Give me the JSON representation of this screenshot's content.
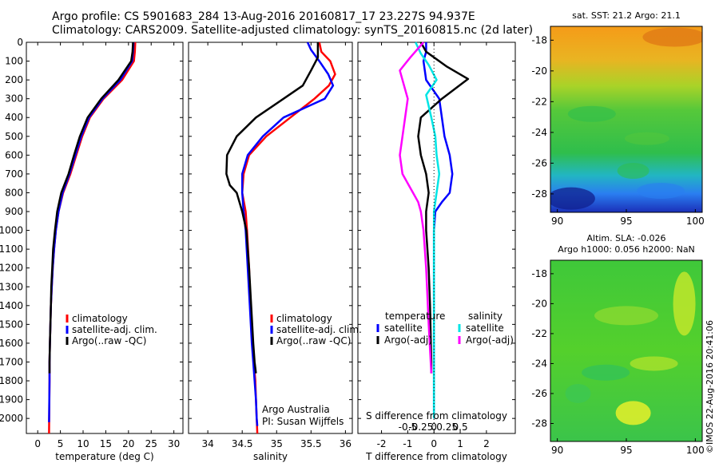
{
  "header": {
    "line1": "Argo profile: CS 5901683_284 13-Aug-2016 20160817_17 23.227S 94.937E",
    "line2": "Climatology: CARS2009. Satellite-adjusted climatology: synTS_20160815.nc (2d later)"
  },
  "colors": {
    "climatology": "#ff0000",
    "satellite": "#0000ff",
    "argo": "#000000",
    "salinity_satellite": "#00e5e5",
    "salinity_argo": "#ff00ff"
  },
  "chart_data": [
    {
      "type": "line",
      "id": "temperature",
      "xlabel": "temperature (deg C)",
      "ylabel": "",
      "xlim": [
        -2.5,
        32
      ],
      "ylim": [
        2080,
        0
      ],
      "xticks": [
        0,
        5,
        10,
        15,
        20,
        25,
        30
      ],
      "yticks": [
        0,
        100,
        200,
        300,
        400,
        500,
        600,
        700,
        800,
        900,
        1000,
        1100,
        1200,
        1300,
        1400,
        1500,
        1600,
        1700,
        1800,
        1900,
        2000
      ],
      "legend": [
        "climatology",
        "satellite-adj. clim.",
        "Argo(..raw -QC)"
      ],
      "series": [
        {
          "name": "climatology",
          "color": "#ff0000",
          "x": [
            21.5,
            21.4,
            21.2,
            18.6,
            14.5,
            11.5,
            9.8,
            8.5,
            7.2,
            5.6,
            4.6,
            4.0,
            3.6,
            3.3,
            3.1,
            2.9,
            2.8,
            2.7,
            2.6,
            2.6,
            2.5
          ],
          "y": [
            0,
            50,
            100,
            200,
            300,
            400,
            500,
            600,
            700,
            800,
            900,
            1000,
            1100,
            1200,
            1300,
            1400,
            1500,
            1600,
            1700,
            1800,
            2080
          ]
        },
        {
          "name": "satellite-adj. clim.",
          "color": "#0000ff",
          "x": [
            21.1,
            21.0,
            20.8,
            18.2,
            14.3,
            11.3,
            9.6,
            8.3,
            7.0,
            5.5,
            4.6,
            4.0,
            3.6,
            3.3,
            3.1,
            2.9,
            2.8,
            2.7,
            2.6,
            2.6,
            2.5
          ],
          "y": [
            0,
            50,
            100,
            200,
            300,
            400,
            500,
            600,
            700,
            800,
            900,
            1000,
            1100,
            1200,
            1300,
            1400,
            1500,
            1600,
            1700,
            1800,
            2020
          ]
        },
        {
          "name": "Argo(..raw -QC)",
          "color": "#000000",
          "x": [
            21.0,
            20.9,
            20.6,
            17.8,
            14.0,
            11.0,
            9.3,
            8.0,
            6.8,
            5.2,
            4.3,
            3.8,
            3.4,
            3.2,
            3.0,
            2.9,
            2.8,
            2.7,
            2.6,
            2.6
          ],
          "y": [
            0,
            50,
            100,
            200,
            300,
            400,
            500,
            600,
            700,
            800,
            900,
            1000,
            1100,
            1200,
            1300,
            1400,
            1500,
            1600,
            1700,
            1760
          ]
        }
      ]
    },
    {
      "type": "line",
      "id": "salinity",
      "xlabel": "salinity",
      "ylabel": "",
      "xlim": [
        33.72,
        36.1
      ],
      "ylim": [
        2080,
        0
      ],
      "xticks": [
        34,
        34.5,
        35,
        35.5,
        36
      ],
      "legend": [
        "climatology",
        "satellite-adj. clim.",
        "Argo(..raw -QC)"
      ],
      "annotation": [
        "Argo Australia",
        "PI: Susan Wijffels"
      ],
      "series": [
        {
          "name": "climatology",
          "color": "#ff0000",
          "x": [
            35.62,
            35.65,
            35.78,
            35.85,
            35.76,
            35.55,
            35.2,
            34.85,
            34.6,
            34.52,
            34.5,
            34.55,
            34.57,
            34.6,
            34.62,
            34.65,
            34.67,
            34.69,
            34.7,
            34.71,
            34.72
          ],
          "y": [
            0,
            50,
            100,
            170,
            230,
            300,
            400,
            500,
            600,
            700,
            800,
            900,
            1000,
            1200,
            1400,
            1600,
            1700,
            1800,
            1900,
            2000,
            2080
          ]
        },
        {
          "name": "satellite-adj. clim.",
          "color": "#0000ff",
          "x": [
            35.45,
            35.5,
            35.62,
            35.75,
            35.82,
            35.7,
            35.1,
            34.8,
            34.58,
            34.5,
            34.5,
            34.52,
            34.55,
            34.58,
            34.61,
            34.64,
            34.66,
            34.68,
            34.7,
            34.71,
            34.72
          ],
          "y": [
            0,
            40,
            100,
            170,
            230,
            300,
            400,
            500,
            600,
            700,
            800,
            900,
            1000,
            1200,
            1400,
            1600,
            1700,
            1800,
            1900,
            2000,
            2040
          ]
        },
        {
          "name": "Argo(..raw -QC)",
          "color": "#000000",
          "x": [
            35.6,
            35.6,
            35.5,
            35.38,
            35.1,
            34.7,
            34.42,
            34.28,
            34.27,
            34.32,
            34.42,
            34.5,
            34.56,
            34.6,
            34.63,
            34.66,
            34.68,
            34.7
          ],
          "y": [
            0,
            80,
            150,
            230,
            300,
            400,
            500,
            600,
            700,
            760,
            800,
            900,
            1000,
            1200,
            1400,
            1600,
            1700,
            1760
          ]
        }
      ]
    },
    {
      "type": "line",
      "id": "difference",
      "xlabel": "T difference from climatology",
      "xlabel_top": "S difference from climatology",
      "xlim": [
        -2.9,
        3.1
      ],
      "ylim": [
        2080,
        0
      ],
      "xticks": [
        -2,
        -1,
        0,
        1,
        2
      ],
      "xticks_top_labels": [
        "-0.5",
        "-0.25",
        "0",
        "0.25",
        "0.5"
      ],
      "legend_groups": [
        {
          "title": "temperature",
          "items": [
            "satellite",
            "Argo(-adj)"
          ]
        },
        {
          "title": "salinity",
          "items": [
            "satellite",
            "Argo(-adj)"
          ]
        }
      ],
      "series": [
        {
          "name": "temperature satellite",
          "color": "#0000ff",
          "x": [
            -0.3,
            -0.3,
            -0.4,
            -0.3,
            0.2,
            0.3,
            0.4,
            0.6,
            0.7,
            0.6,
            0.3,
            0.05,
            0.0,
            0.0,
            0.0,
            0.0,
            0.0,
            0.0
          ],
          "y": [
            0,
            50,
            100,
            200,
            300,
            400,
            500,
            600,
            700,
            800,
            850,
            900,
            1000,
            1200,
            1400,
            1600,
            1800,
            2000
          ]
        },
        {
          "name": "temperature Argo(-adj)",
          "color": "#000000",
          "x": [
            -0.5,
            -0.3,
            0.5,
            1.3,
            0.3,
            -0.5,
            -0.6,
            -0.5,
            -0.3,
            -0.2,
            -0.3,
            -0.3,
            -0.25,
            -0.2,
            -0.15,
            -0.12,
            -0.1,
            -0.1
          ],
          "y": [
            0,
            50,
            130,
            195,
            300,
            400,
            500,
            600,
            700,
            800,
            900,
            1000,
            1100,
            1200,
            1400,
            1600,
            1700,
            1760
          ]
        },
        {
          "name": "salinity satellite",
          "color": "#00e5e5",
          "x": [
            -0.7,
            -0.5,
            -0.2,
            0.1,
            -0.3,
            -0.1,
            0.05,
            0.1,
            0.2,
            0.1,
            0.0,
            0.0,
            0.0,
            0.0,
            0.0
          ],
          "y": [
            0,
            60,
            120,
            200,
            280,
            400,
            500,
            600,
            700,
            800,
            900,
            1000,
            1200,
            1600,
            2000
          ]
        },
        {
          "name": "salinity Argo(-adj)",
          "color": "#ff00ff",
          "x": [
            -0.4,
            -0.9,
            -1.3,
            -1.1,
            -1.0,
            -1.1,
            -1.2,
            -1.3,
            -1.2,
            -0.8,
            -0.6,
            -0.5,
            -0.4,
            -0.3,
            -0.2,
            -0.1
          ],
          "y": [
            0,
            80,
            150,
            250,
            300,
            400,
            500,
            600,
            700,
            800,
            850,
            900,
            1000,
            1200,
            1500,
            1760
          ]
        }
      ]
    },
    {
      "type": "heatmap",
      "id": "sst-map",
      "title": "sat. SST: 21.2 Argo: 21.1",
      "xticks": [
        90,
        95,
        100
      ],
      "yticks": [
        -18,
        -20,
        -22,
        -24,
        -26,
        -28
      ],
      "xlim": [
        89.5,
        100.5
      ],
      "ylim": [
        -29.2,
        -17.1
      ]
    },
    {
      "type": "heatmap",
      "id": "sla-map",
      "title": "Altim. SLA: -0.026",
      "subtitle": "Argo h1000: 0.056 h2000: NaN",
      "xticks": [
        90,
        95,
        100
      ],
      "yticks": [
        -18,
        -20,
        -22,
        -24,
        -26,
        -28
      ],
      "xlim": [
        89.5,
        100.5
      ],
      "ylim": [
        -29.2,
        -17.1
      ]
    }
  ],
  "footer": {
    "timestamp": "©IMOS 22-Aug-2016 20:41:06"
  }
}
